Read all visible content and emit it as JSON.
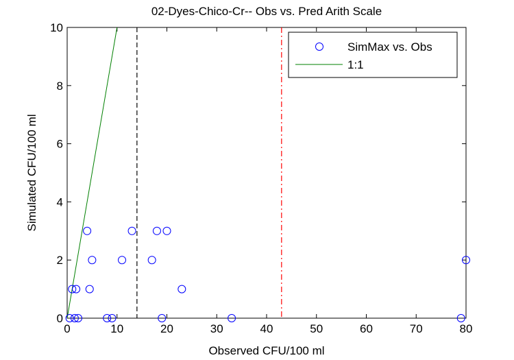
{
  "chart_data": {
    "type": "scatter",
    "title": "02-Dyes-Chico-Cr-- Obs vs. Pred Arith Scale",
    "xlabel": "Observed CFU/100 ml",
    "ylabel": "Simulated CFU/100 ml",
    "xlim": [
      0,
      80
    ],
    "ylim": [
      0,
      10
    ],
    "xticks": [
      0,
      10,
      20,
      30,
      40,
      50,
      60,
      70,
      80
    ],
    "yticks": [
      0,
      2,
      4,
      6,
      8,
      10
    ],
    "grid": false,
    "legend_position": "top-right",
    "series": [
      {
        "name": "SimMax vs. Obs",
        "marker": "circle",
        "color": "#0000ff",
        "points": [
          [
            0.5,
            0
          ],
          [
            1,
            1
          ],
          [
            1.5,
            0
          ],
          [
            1.8,
            1
          ],
          [
            2.2,
            0
          ],
          [
            4,
            3
          ],
          [
            4.5,
            1
          ],
          [
            5,
            2
          ],
          [
            8,
            0
          ],
          [
            9,
            0
          ],
          [
            11,
            2
          ],
          [
            13,
            3
          ],
          [
            17,
            2
          ],
          [
            18,
            3
          ],
          [
            19,
            0
          ],
          [
            20,
            3
          ],
          [
            23,
            1
          ],
          [
            33,
            0
          ],
          [
            79,
            0
          ],
          [
            80,
            2
          ]
        ]
      },
      {
        "name": "1:1",
        "style": "line",
        "color": "#008000",
        "points": [
          [
            0,
            0
          ],
          [
            10,
            10
          ]
        ]
      }
    ],
    "reference_lines": [
      {
        "x": 14,
        "style": "dashed",
        "color": "#000000"
      },
      {
        "x": 43,
        "style": "dashdot",
        "color": "#ff0000"
      }
    ]
  }
}
